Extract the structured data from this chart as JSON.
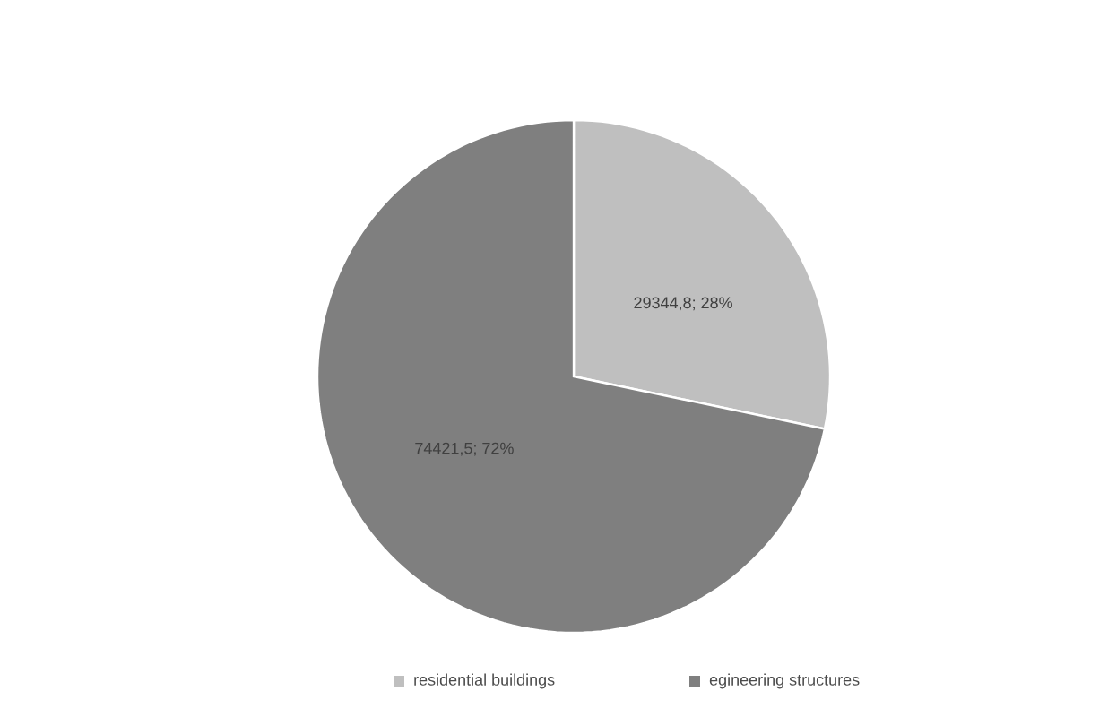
{
  "chart_data": {
    "type": "pie",
    "categories": [
      "residential buildings",
      "egineering structures"
    ],
    "values": [
      29344.8,
      74421.5
    ],
    "colors": [
      "#bfbfbf",
      "#7f7f7f"
    ],
    "value_labels": [
      "29344,8; 28%",
      "74421,5; 72%"
    ],
    "legend": "bottom"
  }
}
